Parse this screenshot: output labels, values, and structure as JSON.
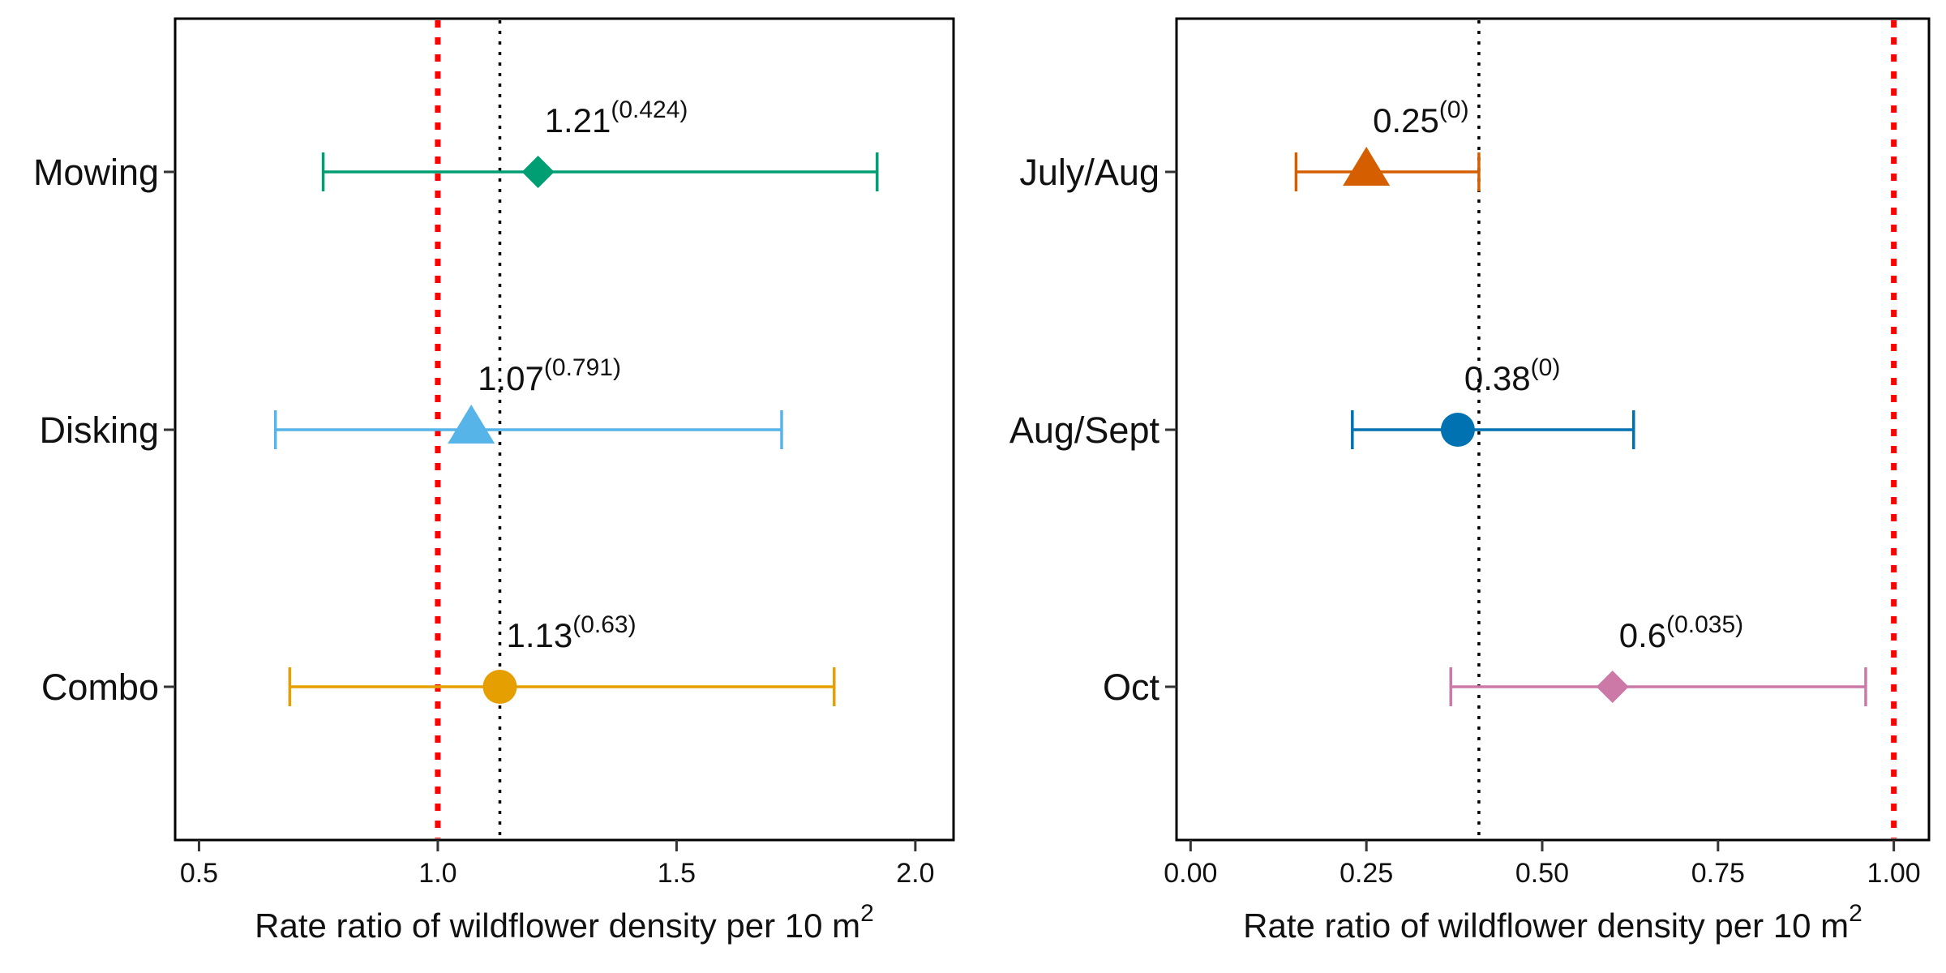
{
  "chart_data": [
    {
      "type": "forest",
      "xlabel": "Rate ratio of wildflower density per 10 m",
      "xlabel_superscript": "2",
      "xlim": [
        0.45,
        2.08
      ],
      "x_ticks": [
        0.5,
        1.0,
        1.5,
        2.0
      ],
      "x_tick_labels": [
        "0.5",
        "1.0",
        "1.5",
        "2.0"
      ],
      "reference_line_red": 1.0,
      "reference_line_black": 1.13,
      "grid": false,
      "categories": [
        "Mowing",
        "Disking",
        "Combo"
      ],
      "estimates": [
        {
          "category": "Mowing",
          "value": 1.21,
          "lower": 0.76,
          "upper": 1.92,
          "label": "1.21",
          "p_label": "(0.424)",
          "marker": "diamond",
          "color": "#009E73"
        },
        {
          "category": "Disking",
          "value": 1.07,
          "lower": 0.66,
          "upper": 1.72,
          "label": "1.07",
          "p_label": "(0.791)",
          "marker": "triangle",
          "color": "#56B4E9"
        },
        {
          "category": "Combo",
          "value": 1.13,
          "lower": 0.69,
          "upper": 1.83,
          "label": "1.13",
          "p_label": "(0.63)",
          "marker": "circle",
          "color": "#E69F00"
        }
      ]
    },
    {
      "type": "forest",
      "xlabel": "Rate ratio of wildflower density per 10 m",
      "xlabel_superscript": "2",
      "xlim": [
        -0.02,
        1.05
      ],
      "x_ticks": [
        0.0,
        0.25,
        0.5,
        0.75,
        1.0
      ],
      "x_tick_labels": [
        "0.00",
        "0.25",
        "0.50",
        "0.75",
        "1.00"
      ],
      "reference_line_red": 1.0,
      "reference_line_black": 0.41,
      "grid": false,
      "categories": [
        "July/Aug",
        "Aug/Sept",
        "Oct"
      ],
      "estimates": [
        {
          "category": "July/Aug",
          "value": 0.25,
          "lower": 0.15,
          "upper": 0.41,
          "label": "0.25",
          "p_label": "(0)",
          "marker": "triangle",
          "color": "#D55E00"
        },
        {
          "category": "Aug/Sept",
          "value": 0.38,
          "lower": 0.23,
          "upper": 0.63,
          "label": "0.38",
          "p_label": "(0)",
          "marker": "circle",
          "color": "#0072B2"
        },
        {
          "category": "Oct",
          "value": 0.6,
          "lower": 0.37,
          "upper": 0.96,
          "label": "0.6",
          "p_label": "(0.035)",
          "marker": "diamond",
          "color": "#CC79A7"
        }
      ]
    }
  ]
}
